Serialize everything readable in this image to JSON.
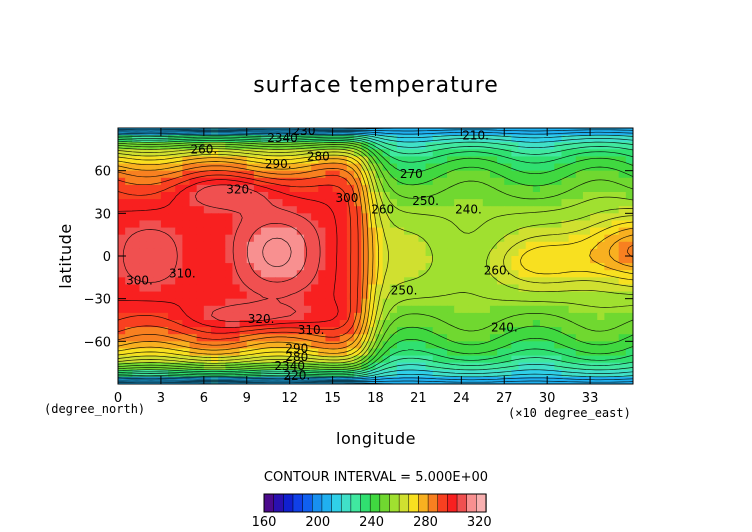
{
  "chart_data": {
    "type": "heatmap",
    "title": "surface temperature",
    "xlabel": "longitude",
    "ylabel": "latitude",
    "x_unit": "(×10 degree_east)",
    "y_unit": "(degree_north)",
    "xlim": [
      0,
      36
    ],
    "ylim": [
      -90,
      90
    ],
    "x_ticks": [
      "0",
      "3",
      "6",
      "9",
      "12",
      "15",
      "18",
      "21",
      "24",
      "27",
      "30",
      "33"
    ],
    "y_ticks": [
      "60",
      "30",
      "0",
      "−30",
      "−60"
    ],
    "contour_interval_text": "CONTOUR INTERVAL = 5.000E+00",
    "colorbar": {
      "ticks": [
        "160",
        "200",
        "240",
        "280",
        "320"
      ],
      "min": 160,
      "max": 325,
      "colors": [
        "#4b0a8c",
        "#2a10b0",
        "#1020d0",
        "#1040e8",
        "#1060f0",
        "#1890f0",
        "#20b0f0",
        "#30d0e8",
        "#40e0c8",
        "#40e8a0",
        "#30e070",
        "#40d840",
        "#70d830",
        "#a0e030",
        "#d0e030",
        "#f8e020",
        "#f8b020",
        "#f88020",
        "#f84020",
        "#f82020",
        "#f05050",
        "#f89090",
        "#f8b0b0"
      ]
    },
    "field_description": "surface temperature (K) versus longitude and latitude",
    "contour_labels": [
      {
        "text": "230",
        "lon": 13.0,
        "lat": 85
      },
      {
        "text": "2340",
        "lon": 11.5,
        "lat": 80
      },
      {
        "text": "260.",
        "lon": 6.0,
        "lat": 72
      },
      {
        "text": "290.",
        "lon": 11.2,
        "lat": 62
      },
      {
        "text": "280",
        "lon": 14.0,
        "lat": 67
      },
      {
        "text": "270",
        "lon": 20.5,
        "lat": 55
      },
      {
        "text": "210.",
        "lon": 25.0,
        "lat": 82
      },
      {
        "text": "320.",
        "lon": 8.5,
        "lat": 44
      },
      {
        "text": "300",
        "lon": 16.0,
        "lat": 38
      },
      {
        "text": "260",
        "lon": 18.5,
        "lat": 30
      },
      {
        "text": "250.",
        "lon": 21.5,
        "lat": 36
      },
      {
        "text": "240.",
        "lon": 24.5,
        "lat": 30
      },
      {
        "text": "310.",
        "lon": 4.5,
        "lat": -15
      },
      {
        "text": "300.",
        "lon": 1.5,
        "lat": -20
      },
      {
        "text": "260.",
        "lon": 26.5,
        "lat": -13
      },
      {
        "text": "250.",
        "lon": 20.0,
        "lat": -27
      },
      {
        "text": "320.",
        "lon": 10.0,
        "lat": -47
      },
      {
        "text": "310.",
        "lon": 13.5,
        "lat": -55
      },
      {
        "text": "240.",
        "lon": 27.0,
        "lat": -53
      },
      {
        "text": "290",
        "lon": 12.5,
        "lat": -68
      },
      {
        "text": "280",
        "lon": 12.5,
        "lat": -74
      },
      {
        "text": "2340",
        "lon": 12.0,
        "lat": -80
      },
      {
        "text": "220.",
        "lon": 12.5,
        "lat": -87
      }
    ]
  }
}
